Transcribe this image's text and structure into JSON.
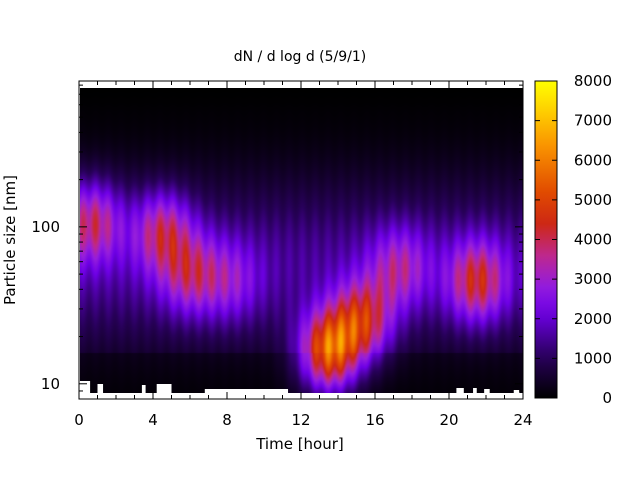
{
  "chart_data": {
    "type": "heatmap",
    "title": "dN / d log d (5/9/1)",
    "xlabel": "Time [hour]",
    "ylabel": "Particle size [nm]",
    "xlim": [
      0,
      24
    ],
    "ylim": [
      8,
      850
    ],
    "yscale": "log",
    "xticks": [
      0,
      4,
      8,
      12,
      16,
      20,
      24
    ],
    "yticks": [
      10,
      100
    ],
    "colorbar": {
      "range": [
        0,
        8000
      ],
      "ticks": [
        0,
        1000,
        2000,
        3000,
        4000,
        5000,
        6000,
        7000,
        8000
      ],
      "colormap": [
        "#000000",
        "#3b0a6e",
        "#7a00ff",
        "#a11cd6",
        "#c52a86",
        "#c32a0e",
        "#e34c00",
        "#ff9d00",
        "#ffff00"
      ]
    },
    "features": [
      {
        "time_center": 0.7,
        "size_nm": 110,
        "value": 4500
      },
      {
        "time_center": 4.5,
        "size_nm": 95,
        "value": 4300
      },
      {
        "time_center": 6.0,
        "size_nm": 50,
        "value": 3800
      },
      {
        "time_center": 8.2,
        "size_nm": 45,
        "value": 3000
      },
      {
        "time_center": 13.5,
        "size_nm": 16,
        "value": 7000
      },
      {
        "time_center": 15.3,
        "size_nm": 25,
        "value": 5200
      },
      {
        "time_center": 17.3,
        "size_nm": 55,
        "value": 3600
      },
      {
        "time_center": 21.5,
        "size_nm": 45,
        "value": 4700
      }
    ],
    "grid": false,
    "legend": "colorbar-right"
  }
}
